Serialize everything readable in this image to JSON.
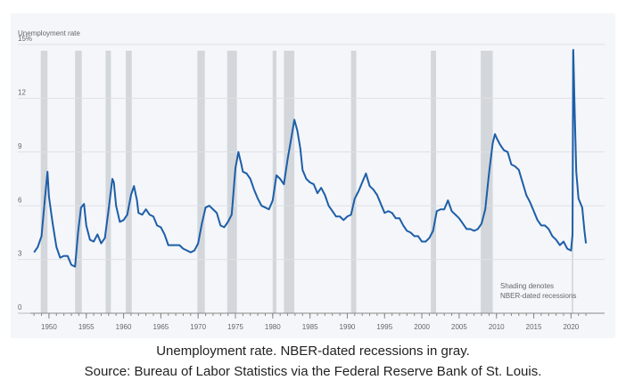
{
  "chart_data": {
    "type": "line",
    "y_axis_label": "Unemployment rate",
    "color": "#1d5ea8",
    "recession_color": "#d3d6da",
    "grid": true,
    "xlim": [
      1947.5,
      2024.5
    ],
    "ylim": [
      0,
      15
    ],
    "xticks": [
      1950,
      1955,
      1960,
      1965,
      1970,
      1975,
      1980,
      1985,
      1990,
      1995,
      2000,
      2005,
      2010,
      2015,
      2020
    ],
    "xticks_minor": [
      1948,
      1949,
      1950,
      1951,
      1952,
      1953,
      1954,
      1955,
      1956,
      1957,
      1958,
      1959,
      1960,
      1961,
      1962,
      1963,
      1964,
      1965,
      1966,
      1967,
      1968,
      1969,
      1970,
      1971,
      1972,
      1973,
      1974,
      1975,
      1976,
      1977,
      1978,
      1979,
      1980,
      1981,
      1982,
      1983,
      1984,
      1985,
      1986,
      1987,
      1988,
      1989,
      1990,
      1991,
      1992,
      1993,
      1994,
      1995,
      1996,
      1997,
      1998,
      1999,
      2000,
      2001,
      2002,
      2003,
      2004,
      2005,
      2006,
      2007,
      2008,
      2009,
      2010,
      2011,
      2012,
      2013,
      2014,
      2015,
      2016,
      2017,
      2018,
      2019,
      2020,
      2021,
      2022
    ],
    "yticks": [
      0,
      3,
      6,
      9,
      12,
      {
        "value": 15,
        "label": "15%"
      }
    ],
    "recessions": [
      [
        1948.9,
        1949.8
      ],
      [
        1953.5,
        1954.4
      ],
      [
        1957.6,
        1958.3
      ],
      [
        1960.3,
        1961.1
      ],
      [
        1969.9,
        1970.9
      ],
      [
        1973.9,
        1975.2
      ],
      [
        1980.0,
        1980.5
      ],
      [
        1981.5,
        1982.9
      ],
      [
        1990.5,
        1991.2
      ],
      [
        2001.2,
        2001.9
      ],
      [
        2007.9,
        2009.5
      ],
      [
        2020.1,
        2020.3
      ]
    ],
    "annotation": [
      "Shading denotes",
      "NBER-dated recessions"
    ],
    "x": [
      1948.0,
      1948.5,
      1949.0,
      1949.5,
      1949.8,
      1950.0,
      1950.5,
      1951.0,
      1951.5,
      1952.0,
      1952.5,
      1953.0,
      1953.5,
      1953.9,
      1954.3,
      1954.7,
      1955.0,
      1955.5,
      1956.0,
      1956.5,
      1957.0,
      1957.5,
      1958.0,
      1958.5,
      1958.7,
      1959.0,
      1959.5,
      1960.0,
      1960.5,
      1961.0,
      1961.4,
      1961.8,
      1962.0,
      1962.5,
      1963.0,
      1963.5,
      1964.0,
      1964.5,
      1965.0,
      1965.5,
      1966.0,
      1966.5,
      1967.0,
      1967.5,
      1968.0,
      1968.5,
      1969.0,
      1969.5,
      1970.0,
      1970.5,
      1971.0,
      1971.5,
      1972.0,
      1972.5,
      1973.0,
      1973.5,
      1974.0,
      1974.5,
      1975.0,
      1975.4,
      1975.8,
      1976.0,
      1976.5,
      1977.0,
      1977.5,
      1978.0,
      1978.5,
      1979.0,
      1979.5,
      1980.0,
      1980.5,
      1981.0,
      1981.5,
      1982.0,
      1982.5,
      1982.9,
      1983.3,
      1983.7,
      1984.0,
      1984.5,
      1985.0,
      1985.5,
      1986.0,
      1986.5,
      1987.0,
      1987.5,
      1988.0,
      1988.5,
      1989.0,
      1989.5,
      1990.0,
      1990.5,
      1991.0,
      1991.5,
      1992.0,
      1992.5,
      1993.0,
      1993.5,
      1994.0,
      1994.5,
      1995.0,
      1995.5,
      1996.0,
      1996.5,
      1997.0,
      1997.5,
      1998.0,
      1998.5,
      1999.0,
      1999.5,
      2000.0,
      2000.5,
      2001.0,
      2001.5,
      2002.0,
      2002.5,
      2003.0,
      2003.5,
      2004.0,
      2004.5,
      2005.0,
      2005.5,
      2006.0,
      2006.5,
      2007.0,
      2007.5,
      2008.0,
      2008.5,
      2009.0,
      2009.5,
      2009.8,
      2010.0,
      2010.5,
      2011.0,
      2011.5,
      2012.0,
      2012.5,
      2013.0,
      2013.5,
      2014.0,
      2014.5,
      2015.0,
      2015.5,
      2016.0,
      2016.5,
      2017.0,
      2017.5,
      2018.0,
      2018.5,
      2019.0,
      2019.5,
      2020.0,
      2020.2,
      2020.3,
      2020.5,
      2020.7,
      2021.0,
      2021.5,
      2021.8,
      2022.0
    ],
    "values": [
      3.4,
      3.7,
      4.3,
      6.6,
      7.9,
      6.5,
      5.0,
      3.7,
      3.1,
      3.2,
      3.2,
      2.7,
      2.6,
      4.5,
      5.9,
      6.1,
      4.9,
      4.1,
      4.0,
      4.4,
      3.9,
      4.2,
      5.8,
      7.5,
      7.3,
      6.0,
      5.1,
      5.2,
      5.5,
      6.6,
      7.1,
      6.3,
      5.6,
      5.5,
      5.8,
      5.5,
      5.4,
      4.9,
      4.8,
      4.4,
      3.8,
      3.8,
      3.8,
      3.8,
      3.6,
      3.5,
      3.4,
      3.5,
      3.9,
      5.0,
      5.9,
      6.0,
      5.8,
      5.6,
      4.9,
      4.8,
      5.1,
      5.5,
      8.1,
      9.0,
      8.3,
      7.9,
      7.8,
      7.5,
      6.9,
      6.4,
      6.0,
      5.9,
      5.8,
      6.3,
      7.7,
      7.5,
      7.2,
      8.6,
      9.8,
      10.8,
      10.2,
      9.2,
      8.0,
      7.5,
      7.3,
      7.2,
      6.7,
      7.0,
      6.6,
      6.0,
      5.7,
      5.4,
      5.4,
      5.2,
      5.4,
      5.5,
      6.4,
      6.8,
      7.3,
      7.8,
      7.1,
      6.9,
      6.6,
      6.1,
      5.6,
      5.7,
      5.6,
      5.3,
      5.3,
      4.9,
      4.6,
      4.5,
      4.3,
      4.3,
      4.0,
      4.0,
      4.2,
      4.6,
      5.7,
      5.8,
      5.8,
      6.3,
      5.7,
      5.5,
      5.3,
      5.0,
      4.7,
      4.7,
      4.6,
      4.7,
      5.0,
      5.8,
      7.8,
      9.5,
      10.0,
      9.8,
      9.4,
      9.1,
      9.0,
      8.3,
      8.2,
      8.0,
      7.3,
      6.6,
      6.2,
      5.7,
      5.2,
      4.9,
      4.9,
      4.7,
      4.3,
      4.1,
      3.8,
      4.0,
      3.6,
      3.5,
      4.4,
      14.7,
      11.1,
      7.9,
      6.4,
      5.9,
      4.6,
      3.9
    ]
  },
  "caption": [
    "Unemployment rate. NBER-dated recessions in gray.",
    "Source: Bureau of Labor Statistics via the Federal Reserve Bank of St. Louis."
  ]
}
